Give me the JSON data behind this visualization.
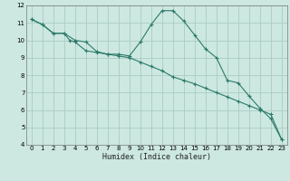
{
  "title": "",
  "xlabel": "Humidex (Indice chaleur)",
  "ylabel": "",
  "background_color": "#cce8e0",
  "grid_color": "#aaccc4",
  "line_color": "#2d7a6a",
  "xlim": [
    -0.5,
    23.5
  ],
  "ylim": [
    4,
    12
  ],
  "xticks": [
    0,
    1,
    2,
    3,
    4,
    5,
    6,
    7,
    8,
    9,
    10,
    11,
    12,
    13,
    14,
    15,
    16,
    17,
    18,
    19,
    20,
    21,
    22,
    23
  ],
  "yticks": [
    4,
    5,
    6,
    7,
    8,
    9,
    10,
    11,
    12
  ],
  "curve1_x": [
    0,
    1,
    2,
    3,
    3.5,
    4,
    5,
    6,
    7,
    8,
    9,
    10,
    11,
    12,
    13,
    14,
    15,
    16,
    17,
    18,
    19,
    20,
    21,
    22,
    23
  ],
  "curve1_y": [
    11.2,
    10.9,
    10.4,
    10.4,
    10.0,
    9.9,
    9.4,
    9.3,
    9.2,
    9.2,
    9.1,
    9.9,
    10.9,
    11.7,
    11.7,
    11.1,
    10.3,
    9.5,
    9.0,
    7.7,
    7.55,
    6.8,
    6.1,
    5.5,
    4.3
  ],
  "curve2_x": [
    0,
    1,
    2,
    3,
    4,
    5,
    6,
    7,
    8,
    9,
    10,
    11,
    12,
    13,
    14,
    15,
    16,
    17,
    18,
    19,
    20,
    21,
    22,
    23
  ],
  "curve2_y": [
    11.2,
    10.9,
    10.4,
    10.4,
    10.0,
    9.9,
    9.35,
    9.2,
    9.1,
    9.0,
    8.75,
    8.5,
    8.25,
    7.9,
    7.7,
    7.5,
    7.25,
    7.0,
    6.75,
    6.5,
    6.25,
    6.0,
    5.75,
    4.3
  ],
  "marker": "+",
  "tick_fontsize": 5.0,
  "xlabel_fontsize": 6.0
}
